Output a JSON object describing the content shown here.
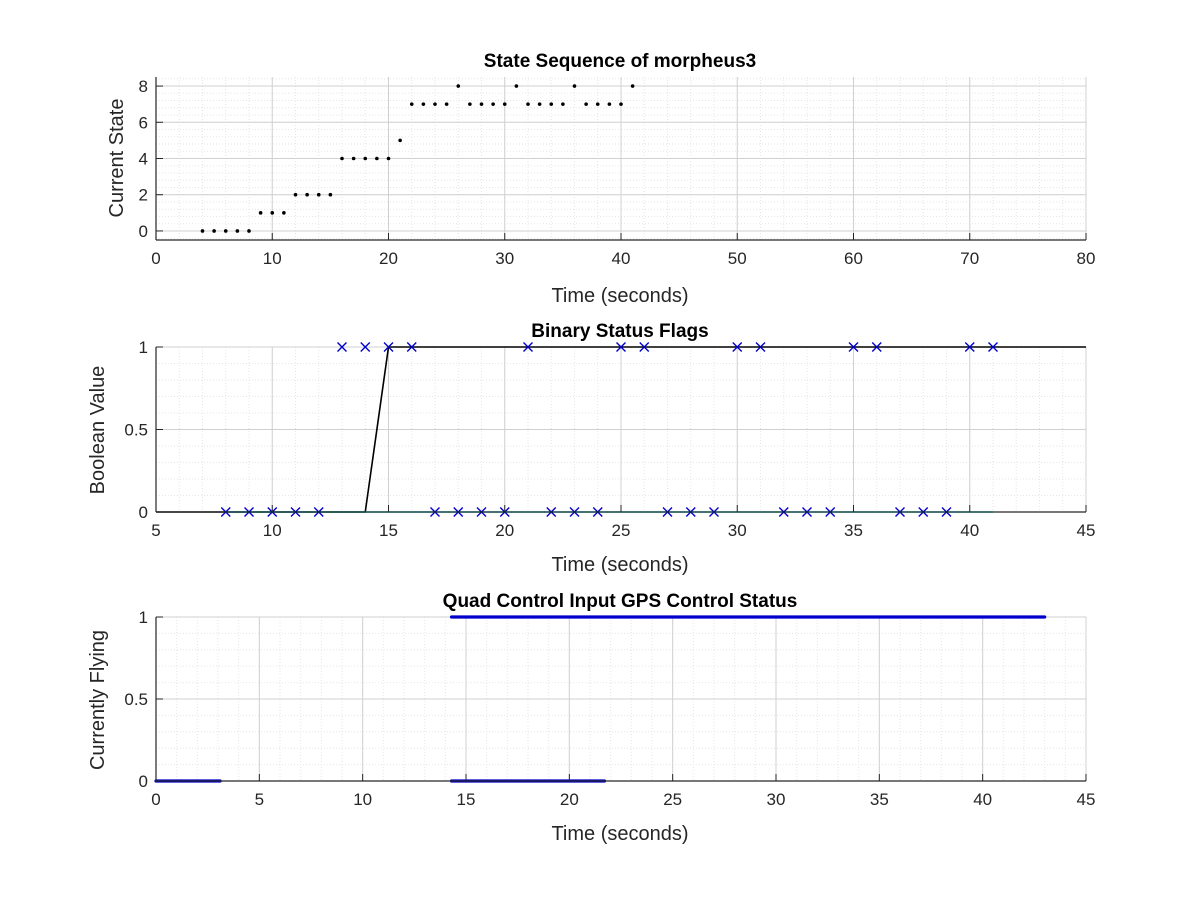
{
  "figure": {
    "background": "#ffffff",
    "axes_color": "#262626",
    "grid_major_color": "#d0d0d0",
    "grid_minor_color": "#e6e6e6"
  },
  "chart_data": [
    {
      "type": "scatter",
      "title": "State Sequence of morpheus3",
      "xlabel": "Time (seconds)",
      "ylabel": "Current State",
      "xlim": [
        0,
        80
      ],
      "ylim": [
        -0.5,
        8.5
      ],
      "xticks": [
        0,
        10,
        20,
        30,
        40,
        50,
        60,
        70,
        80
      ],
      "yticks": [
        0,
        2,
        4,
        6,
        8
      ],
      "grid": "major and minor",
      "series": [
        {
          "marker": "dot",
          "color": "#000000",
          "x": [
            4,
            5,
            6,
            7,
            8,
            9,
            10,
            11,
            12,
            13,
            14,
            15,
            16,
            17,
            18,
            19,
            20,
            21,
            22,
            23,
            24,
            25,
            26,
            27,
            28,
            29,
            30,
            31,
            32,
            33,
            34,
            35,
            36,
            37,
            38,
            39,
            40,
            41
          ],
          "y": [
            0,
            0,
            0,
            0,
            0,
            1,
            1,
            1,
            2,
            2,
            2,
            2,
            4,
            4,
            4,
            4,
            4,
            5,
            7,
            7,
            7,
            7,
            8,
            7,
            7,
            7,
            7,
            8,
            7,
            7,
            7,
            7,
            8,
            7,
            7,
            7,
            7,
            8
          ]
        }
      ]
    },
    {
      "type": "line",
      "title": "Binary Status Flags",
      "xlabel": "Time (seconds)",
      "ylabel": "Boolean Value",
      "xlim": [
        5,
        45
      ],
      "ylim": [
        0,
        1
      ],
      "xticks": [
        5,
        10,
        15,
        20,
        25,
        30,
        35,
        40,
        45
      ],
      "yticks": [
        0,
        0.5,
        1
      ],
      "grid": "major and minor",
      "series": [
        {
          "style": "line",
          "color": "#000000",
          "x": [
            5,
            14,
            15,
            45
          ],
          "y": [
            0,
            0,
            1,
            1
          ]
        },
        {
          "style": "line",
          "color": "#00e5e5",
          "x": [
            8,
            41
          ],
          "y": [
            0,
            0
          ]
        },
        {
          "style": "marker-x",
          "color": "#0000cc",
          "x": [
            8,
            9,
            10,
            11,
            12,
            13,
            14,
            15,
            16,
            17,
            18,
            19,
            20,
            21,
            22,
            23,
            24,
            25,
            26,
            27,
            28,
            29,
            30,
            31,
            32,
            33,
            34,
            35,
            36,
            37,
            38,
            39,
            40,
            41
          ],
          "y": [
            0,
            0,
            0,
            0,
            0,
            1,
            1,
            1,
            1,
            0,
            0,
            0,
            0,
            1,
            0,
            0,
            0,
            1,
            1,
            0,
            0,
            0,
            1,
            1,
            0,
            0,
            0,
            1,
            1,
            0,
            0,
            0,
            1,
            1
          ]
        }
      ]
    },
    {
      "type": "line",
      "title": "Quad Control Input GPS Control Status",
      "xlabel": "Time (seconds)",
      "ylabel": "Currently Flying",
      "xlim": [
        0,
        45
      ],
      "ylim": [
        0,
        1
      ],
      "xticks": [
        0,
        5,
        10,
        15,
        20,
        25,
        30,
        35,
        40,
        45
      ],
      "yticks": [
        0,
        0.5,
        1
      ],
      "grid": "major and minor",
      "series": [
        {
          "style": "dense-dots",
          "color": "#0000cc",
          "segments": [
            {
              "x": [
                0,
                3.1
              ],
              "y": 0
            },
            {
              "x": [
                14.3,
                21.7
              ],
              "y": 0
            },
            {
              "x": [
                14.3,
                43
              ],
              "y": 1
            }
          ]
        }
      ]
    }
  ]
}
